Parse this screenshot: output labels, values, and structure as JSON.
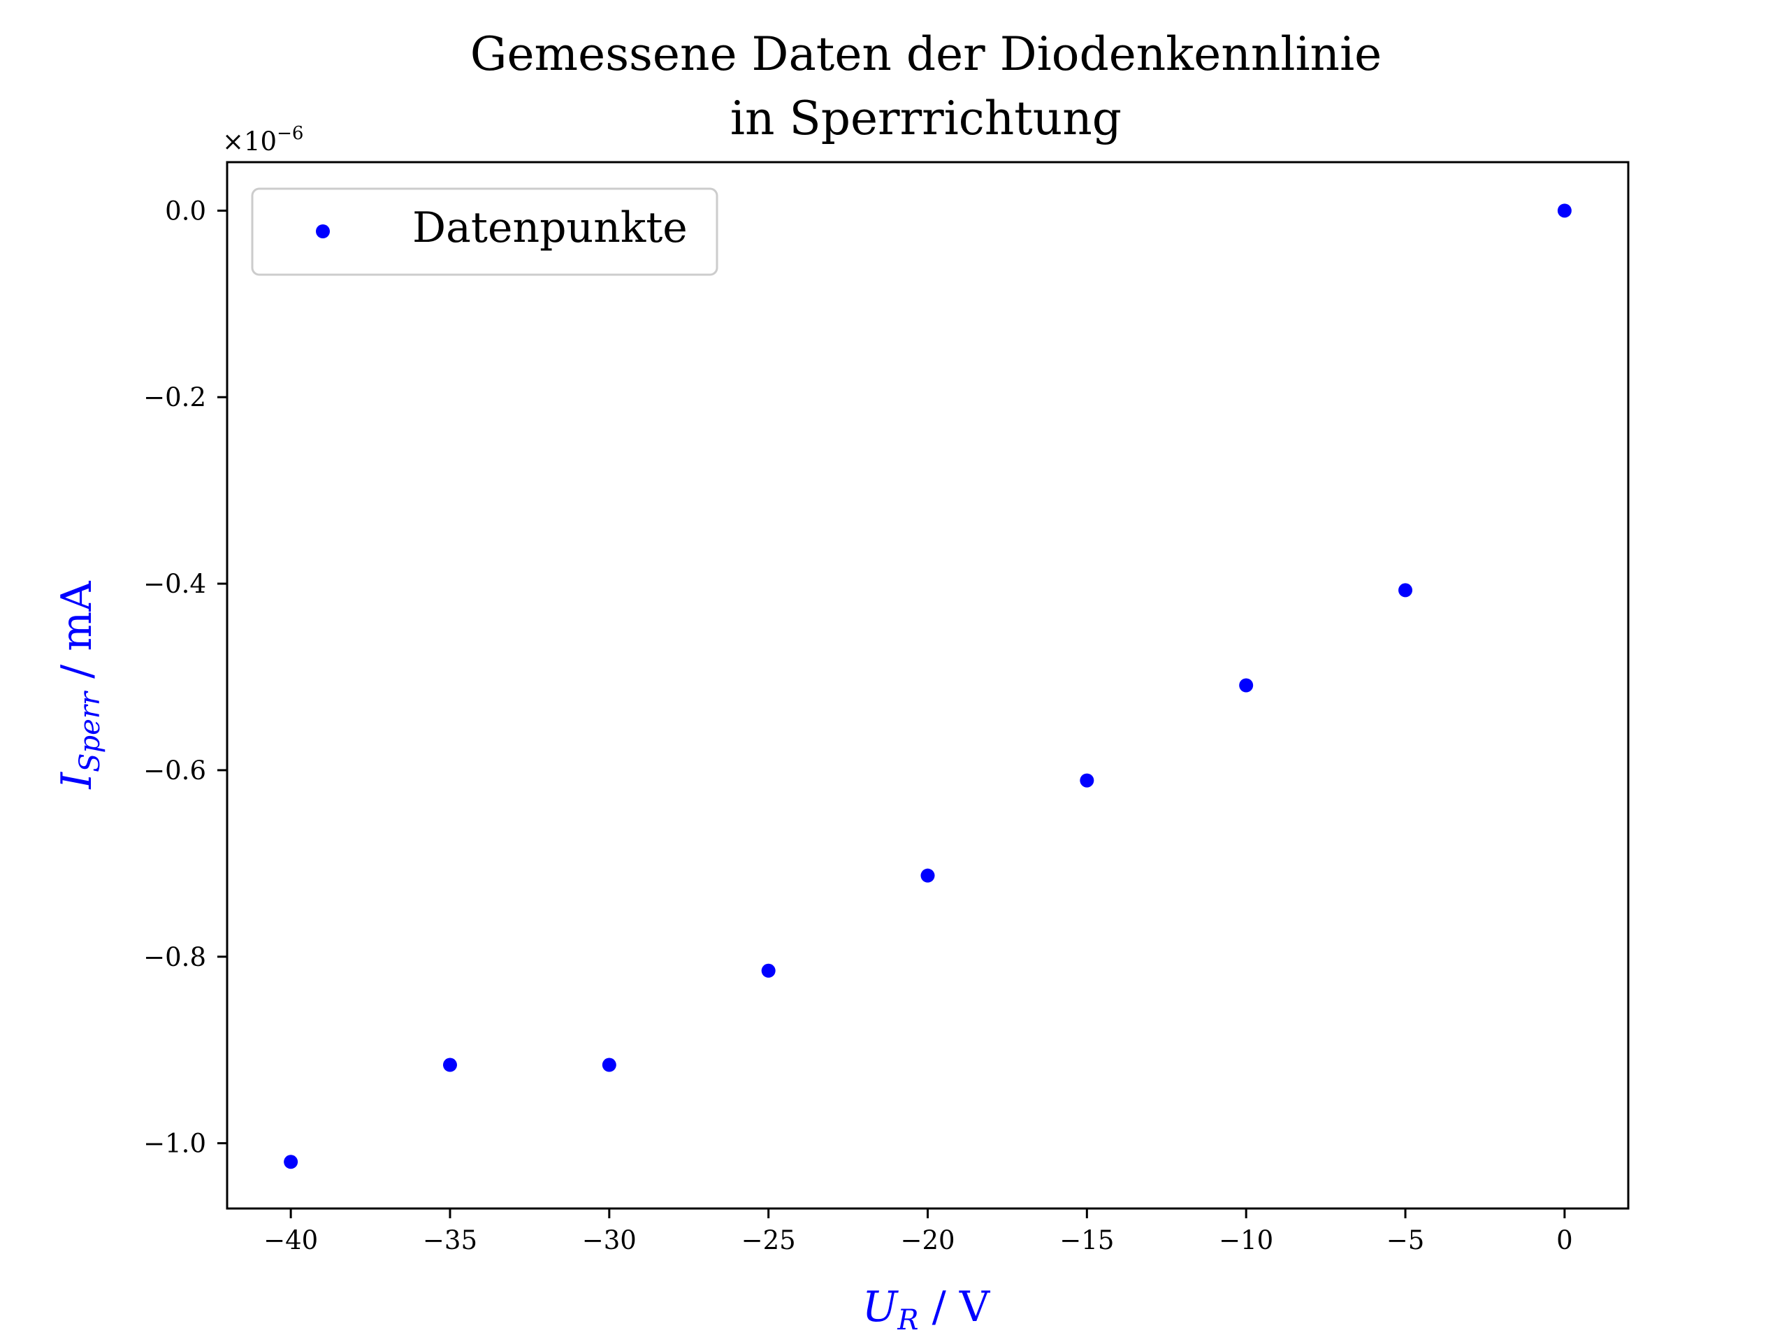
{
  "chart_data": {
    "type": "scatter",
    "title_lines": [
      "Gemessene Daten der Diodenkennlinie",
      "in Sperrrichtung"
    ],
    "xlabel": {
      "symbol": "U",
      "subscript": "R",
      "unit": " / V"
    },
    "ylabel": {
      "symbol": "I",
      "subscript": "Sperr",
      "unit": " / mA"
    },
    "x_ticks": [
      -40,
      -35,
      -30,
      -25,
      -20,
      -15,
      -10,
      -5,
      0
    ],
    "x_tick_labels": [
      "−40",
      "−35",
      "−30",
      "−25",
      "−20",
      "−15",
      "−10",
      "−5",
      "0"
    ],
    "y_ticks": [
      0.0,
      -0.2,
      -0.4,
      -0.6,
      -0.8,
      -1.0
    ],
    "y_tick_labels": [
      "0.0",
      "−0.2",
      "−0.4",
      "−0.6",
      "−0.8",
      "−1.0"
    ],
    "y_offset_base": "×10",
    "y_offset_exp": "−6",
    "xlim": [
      -42,
      2
    ],
    "ylim": [
      -1.07,
      0.052
    ],
    "grid": false,
    "legend_position": "upper-left",
    "series": [
      {
        "name": "Datenpunkte",
        "color": "#0000ff",
        "marker": "circle",
        "x": [
          -40,
          -35,
          -30,
          -25,
          -20,
          -15,
          -10,
          -5,
          0
        ],
        "y": [
          -1.02,
          -0.916,
          -0.916,
          -0.815,
          -0.713,
          -0.611,
          -0.509,
          -0.407,
          0.0
        ]
      }
    ],
    "label_color": "#0000ff"
  }
}
